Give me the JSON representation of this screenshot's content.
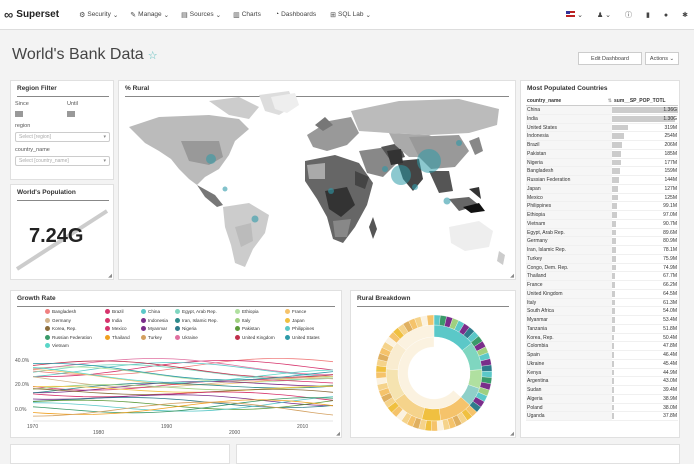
{
  "navbar": {
    "brand": "Superset",
    "menu": [
      {
        "label": "Security",
        "icon": "shield-icon",
        "glyph": "⚙",
        "caret": "⌄"
      },
      {
        "label": "Manage",
        "icon": "wrench-icon",
        "glyph": "✎",
        "caret": "⌄"
      },
      {
        "label": "Sources",
        "icon": "database-icon",
        "glyph": "▤",
        "caret": "⌄"
      },
      {
        "label": "Charts",
        "icon": "bar-chart-icon",
        "glyph": "▥",
        "caret": ""
      },
      {
        "label": "Dashboards",
        "icon": "dashboard-icon",
        "glyph": "◔",
        "caret": ""
      },
      {
        "label": "SQL Lab",
        "icon": "search-icon",
        "glyph": "⊞",
        "caret": "⌄"
      }
    ]
  },
  "page": {
    "title": "World's Bank Data",
    "edit_button": "Edit Dashboard",
    "actions_button": "Actions"
  },
  "region_filter": {
    "title": "Region Filter",
    "since_label": "Since",
    "until_label": "Until",
    "region_label": "region",
    "region_placeholder": "Select [region]",
    "country_label": "country_name",
    "country_placeholder": "Select [country_name]"
  },
  "world_population": {
    "title": "World's Population",
    "value": "7.24G"
  },
  "rural_map": {
    "title": "% Rural"
  },
  "growth_rate": {
    "title": "Growth Rate",
    "y_ticks": [
      "40.0%",
      "20.0%",
      "0.0%"
    ],
    "x_ticks": [
      "1970",
      "1980",
      "1990",
      "2000",
      "2010"
    ],
    "legend": [
      {
        "name": "Bangladesh",
        "color": "#f08080"
      },
      {
        "name": "Brazil",
        "color": "#d6336c"
      },
      {
        "name": "China",
        "color": "#5bc8c8"
      },
      {
        "name": "Egypt, Arab Rep.",
        "color": "#7fd6c0"
      },
      {
        "name": "Ethiopia",
        "color": "#b0e0a0"
      },
      {
        "name": "France",
        "color": "#f5c36b"
      },
      {
        "name": "Germany",
        "color": "#d3b58c"
      },
      {
        "name": "India",
        "color": "#d6336c"
      },
      {
        "name": "Indonesia",
        "color": "#7a2d8a"
      },
      {
        "name": "Iran, Islamic Rep.",
        "color": "#2e8b8b"
      },
      {
        "name": "Italy",
        "color": "#a0d080"
      },
      {
        "name": "Japan",
        "color": "#f0c040"
      },
      {
        "name": "Korea, Rep.",
        "color": "#8b6c3a"
      },
      {
        "name": "Mexico",
        "color": "#d6336c"
      },
      {
        "name": "Myanmar",
        "color": "#7a2d8a"
      },
      {
        "name": "Nigeria",
        "color": "#2e7b8b"
      },
      {
        "name": "Pakistan",
        "color": "#5c9a3a"
      },
      {
        "name": "Philippines",
        "color": "#5bc8c8"
      },
      {
        "name": "Russian Federation",
        "color": "#3a9a6a"
      },
      {
        "name": "Thailand",
        "color": "#f0a020"
      },
      {
        "name": "Turkey",
        "color": "#d3a060"
      },
      {
        "name": "Ukraine",
        "color": "#e070a0"
      },
      {
        "name": "United Kingdom",
        "color": "#c0304c"
      },
      {
        "name": "United States",
        "color": "#2e9aa8"
      },
      {
        "name": "Vietnam",
        "color": "#5ad6c8"
      }
    ]
  },
  "rural_breakdown": {
    "title": "Rural Breakdown"
  },
  "most_populated": {
    "title": "Most Populated Countries",
    "col1": "country_name",
    "col2": "sum__SP_POP_TOTL",
    "rows": [
      {
        "name": "China",
        "value": "1.36G",
        "frac": 1.0
      },
      {
        "name": "India",
        "value": "1.30G",
        "frac": 0.955
      },
      {
        "name": "United States",
        "value": "319M",
        "frac": 0.235
      },
      {
        "name": "Indonesia",
        "value": "254M",
        "frac": 0.187
      },
      {
        "name": "Brazil",
        "value": "206M",
        "frac": 0.151
      },
      {
        "name": "Pakistan",
        "value": "185M",
        "frac": 0.136
      },
      {
        "name": "Nigeria",
        "value": "177M",
        "frac": 0.13
      },
      {
        "name": "Bangladesh",
        "value": "159M",
        "frac": 0.117
      },
      {
        "name": "Russian Federation",
        "value": "144M",
        "frac": 0.106
      },
      {
        "name": "Japan",
        "value": "127M",
        "frac": 0.093
      },
      {
        "name": "Mexico",
        "value": "125M",
        "frac": 0.092
      },
      {
        "name": "Philippines",
        "value": "99.1M",
        "frac": 0.073
      },
      {
        "name": "Ethiopia",
        "value": "97.0M",
        "frac": 0.071
      },
      {
        "name": "Vietnam",
        "value": "90.7M",
        "frac": 0.067
      },
      {
        "name": "Egypt, Arab Rep.",
        "value": "89.6M",
        "frac": 0.066
      },
      {
        "name": "Germany",
        "value": "80.9M",
        "frac": 0.059
      },
      {
        "name": "Iran, Islamic Rep.",
        "value": "78.1M",
        "frac": 0.057
      },
      {
        "name": "Turkey",
        "value": "75.9M",
        "frac": 0.056
      },
      {
        "name": "Congo, Dem. Rep.",
        "value": "74.9M",
        "frac": 0.055
      },
      {
        "name": "Thailand",
        "value": "67.7M",
        "frac": 0.05
      },
      {
        "name": "France",
        "value": "66.2M",
        "frac": 0.049
      },
      {
        "name": "United Kingdom",
        "value": "64.5M",
        "frac": 0.047
      },
      {
        "name": "Italy",
        "value": "61.3M",
        "frac": 0.045
      },
      {
        "name": "South Africa",
        "value": "54.0M",
        "frac": 0.04
      },
      {
        "name": "Myanmar",
        "value": "53.4M",
        "frac": 0.039
      },
      {
        "name": "Tanzania",
        "value": "51.8M",
        "frac": 0.038
      },
      {
        "name": "Korea, Rep.",
        "value": "50.4M",
        "frac": 0.037
      },
      {
        "name": "Colombia",
        "value": "47.8M",
        "frac": 0.035
      },
      {
        "name": "Spain",
        "value": "46.4M",
        "frac": 0.034
      },
      {
        "name": "Ukraine",
        "value": "45.4M",
        "frac": 0.033
      },
      {
        "name": "Kenya",
        "value": "44.9M",
        "frac": 0.033
      },
      {
        "name": "Argentina",
        "value": "43.0M",
        "frac": 0.032
      },
      {
        "name": "Sudan",
        "value": "39.4M",
        "frac": 0.029
      },
      {
        "name": "Algeria",
        "value": "38.9M",
        "frac": 0.029
      },
      {
        "name": "Poland",
        "value": "38.0M",
        "frac": 0.028
      },
      {
        "name": "Uganda",
        "value": "37.8M",
        "frac": 0.028
      }
    ]
  }
}
